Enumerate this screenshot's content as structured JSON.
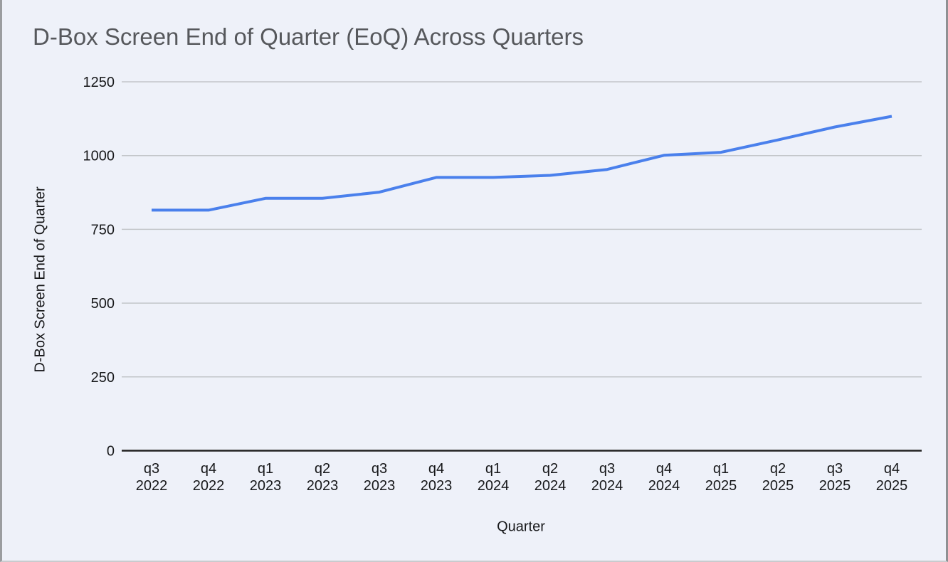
{
  "window": {
    "background": "#eef1f9",
    "border_left_color": "#9b9da0",
    "border_right_color": "#8e9093",
    "border_bottom_color": "#c9cbce"
  },
  "chart_data": {
    "type": "line",
    "title": "D-Box Screen End of Quarter (EoQ) Across Quarters",
    "xlabel": "Quarter",
    "ylabel": "D-Box Screen End of Quarter",
    "categories": [
      "q3 2022",
      "q4 2022",
      "q1 2023",
      "q2 2023",
      "q3 2023",
      "q4 2023",
      "q1 2024",
      "q2 2024",
      "q3 2024",
      "q4 2024",
      "q1 2025",
      "q2 2025",
      "q3 2025",
      "q4 2025"
    ],
    "values": [
      815,
      815,
      855,
      855,
      876,
      926,
      926,
      933,
      953,
      1001,
      1011,
      1053,
      1097,
      1133
    ],
    "ylim": [
      0,
      1250
    ],
    "yticks": [
      0,
      250,
      500,
      750,
      1000,
      1250
    ],
    "grid": "horizontal",
    "legend": "none",
    "title_color": "#56585c",
    "line_color": "#4a80ec",
    "gridline_color": "#c3c6ca",
    "axis_color": "#212121",
    "tick_label_color": "#17181a"
  }
}
